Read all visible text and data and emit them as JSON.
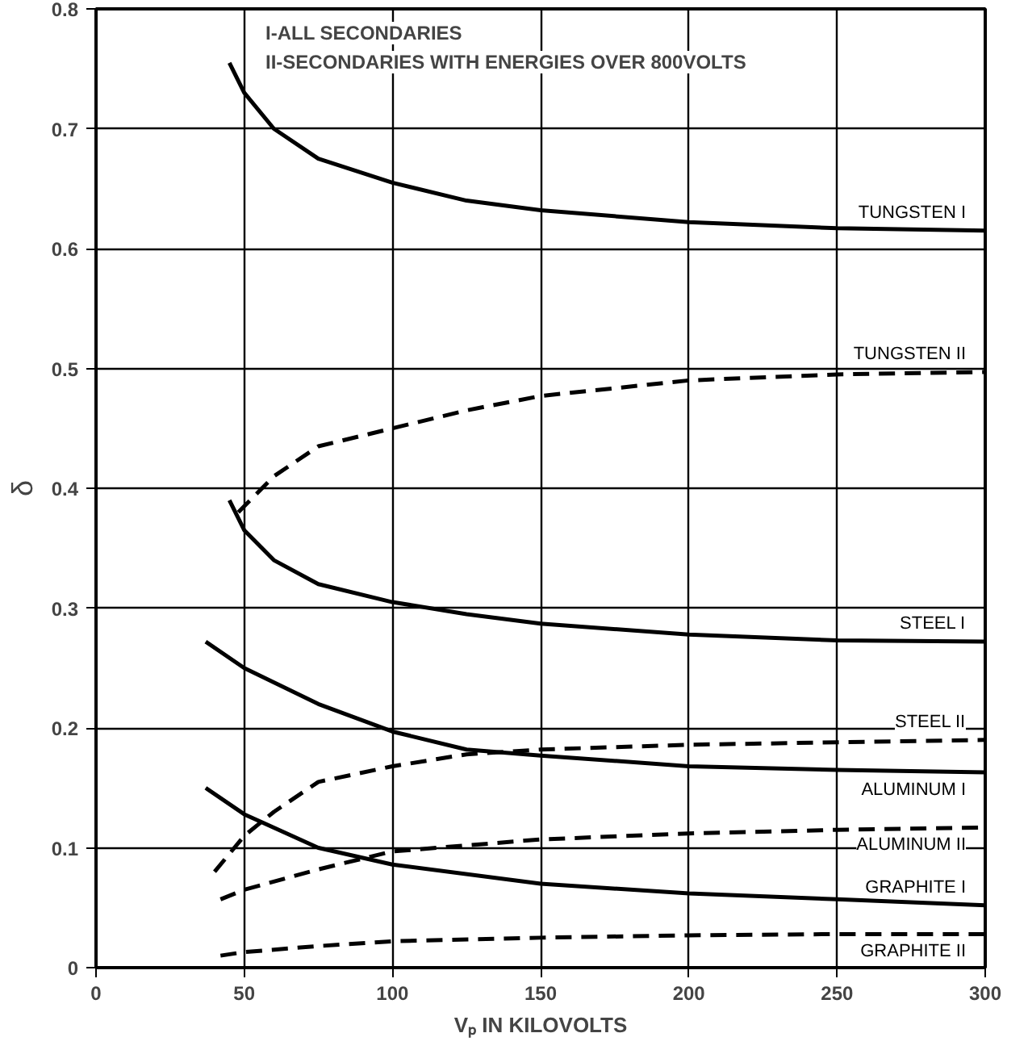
{
  "chart_data": {
    "type": "line",
    "xlabel": "Vₚ IN KILOVOLTS",
    "ylabel": "δ",
    "annotations": [
      "I-ALL SECONDARIES",
      "II-SECONDARIES WITH ENERGIES OVER 800VOLTS"
    ],
    "xlim": [
      0,
      300
    ],
    "ylim": [
      0,
      0.8
    ],
    "xticks": [
      0,
      50,
      100,
      150,
      200,
      250,
      300
    ],
    "yticks": [
      0,
      0.1,
      0.2,
      0.3,
      0.4,
      0.5,
      0.6,
      0.7,
      0.8
    ],
    "grid": true,
    "series": [
      {
        "name": "TUNGSTEN I",
        "color": "#000000",
        "line_style": "solid",
        "x": [
          45,
          50,
          60,
          75,
          100,
          125,
          150,
          200,
          250,
          300
        ],
        "values": [
          0.755,
          0.73,
          0.7,
          0.675,
          0.655,
          0.64,
          0.632,
          0.622,
          0.617,
          0.615
        ]
      },
      {
        "name": "TUNGSTEN II",
        "color": "#000000",
        "line_style": "dashed",
        "x": [
          48,
          50,
          60,
          75,
          100,
          125,
          150,
          200,
          250,
          300
        ],
        "values": [
          0.38,
          0.385,
          0.41,
          0.435,
          0.45,
          0.465,
          0.477,
          0.49,
          0.495,
          0.497
        ]
      },
      {
        "name": "STEEL I",
        "color": "#000000",
        "line_style": "solid",
        "x": [
          45,
          50,
          60,
          75,
          100,
          125,
          150,
          200,
          250,
          300
        ],
        "values": [
          0.39,
          0.365,
          0.34,
          0.32,
          0.305,
          0.295,
          0.287,
          0.278,
          0.273,
          0.272
        ]
      },
      {
        "name": "STEEL II",
        "color": "#000000",
        "line_style": "dashed",
        "x": [
          40,
          45,
          50,
          60,
          75,
          100,
          125,
          150,
          200,
          250,
          300
        ],
        "values": [
          0.08,
          0.095,
          0.11,
          0.13,
          0.155,
          0.168,
          0.178,
          0.182,
          0.186,
          0.188,
          0.19
        ]
      },
      {
        "name": "ALUMINUM I",
        "color": "#000000",
        "line_style": "solid",
        "x": [
          37,
          50,
          75,
          100,
          125,
          150,
          200,
          250,
          300
        ],
        "values": [
          0.272,
          0.25,
          0.22,
          0.197,
          0.182,
          0.177,
          0.168,
          0.165,
          0.163
        ]
      },
      {
        "name": "ALUMINUM II",
        "color": "#000000",
        "line_style": "dashed",
        "x": [
          42,
          50,
          75,
          100,
          150,
          200,
          250,
          300
        ],
        "values": [
          0.057,
          0.065,
          0.082,
          0.097,
          0.107,
          0.112,
          0.115,
          0.117
        ]
      },
      {
        "name": "GRAPHITE I",
        "color": "#000000",
        "line_style": "solid",
        "x": [
          37,
          50,
          75,
          100,
          150,
          200,
          250,
          300
        ],
        "values": [
          0.15,
          0.128,
          0.1,
          0.086,
          0.07,
          0.062,
          0.057,
          0.052
        ]
      },
      {
        "name": "GRAPHITE II",
        "color": "#000000",
        "line_style": "dashed",
        "x": [
          42,
          50,
          75,
          100,
          150,
          200,
          250,
          300
        ],
        "values": [
          0.01,
          0.013,
          0.018,
          0.022,
          0.025,
          0.027,
          0.028,
          0.028
        ]
      }
    ]
  }
}
